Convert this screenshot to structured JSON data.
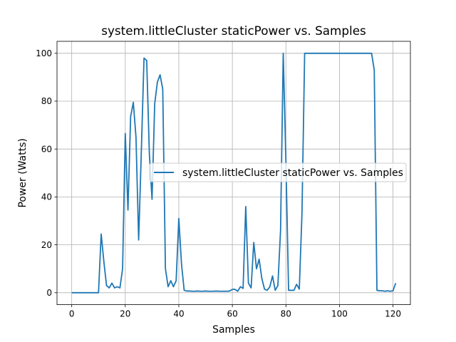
{
  "chart_data": {
    "type": "line",
    "title": "system.littleCluster staticPower vs. Samples",
    "xlabel": "Samples",
    "ylabel": "Power (Watts)",
    "xlim": [
      -5.5,
      126.5
    ],
    "ylim": [
      -5,
      105
    ],
    "xticks": [
      0,
      20,
      40,
      60,
      80,
      100,
      120
    ],
    "yticks": [
      0,
      20,
      40,
      60,
      80,
      100
    ],
    "grid": true,
    "legend_position": "center-right",
    "series": [
      {
        "name": "system.littleCluster staticPower vs. Samples",
        "color": "#1f77b4",
        "x": [
          0,
          1,
          2,
          3,
          4,
          5,
          6,
          7,
          8,
          9,
          10,
          11,
          12,
          13,
          14,
          15,
          16,
          17,
          18,
          19,
          20,
          21,
          22,
          23,
          24,
          25,
          26,
          27,
          28,
          29,
          30,
          31,
          32,
          33,
          34,
          35,
          36,
          37,
          38,
          39,
          40,
          41,
          42,
          43,
          44,
          45,
          46,
          47,
          48,
          49,
          50,
          51,
          52,
          53,
          54,
          55,
          56,
          57,
          58,
          59,
          60,
          61,
          62,
          63,
          64,
          65,
          66,
          67,
          68,
          69,
          70,
          71,
          72,
          73,
          74,
          75,
          76,
          77,
          78,
          79,
          80,
          81,
          82,
          83,
          84,
          85,
          86,
          87,
          88,
          89,
          90,
          91,
          92,
          93,
          94,
          95,
          96,
          97,
          98,
          99,
          100,
          101,
          102,
          103,
          104,
          105,
          106,
          107,
          108,
          109,
          110,
          111,
          112,
          113,
          114,
          115,
          116,
          117,
          118,
          119,
          120,
          121
        ],
        "y": [
          0,
          0,
          0,
          0,
          0,
          0,
          0,
          0,
          0,
          0,
          0,
          24.5,
          13,
          3,
          2,
          4,
          2,
          2.5,
          2,
          10,
          66.5,
          34.5,
          73.5,
          79.5,
          65,
          22,
          59,
          98,
          97,
          58,
          39,
          79,
          88,
          91,
          85,
          10,
          2.5,
          5,
          2.5,
          5,
          31,
          12,
          1,
          0.7,
          0.7,
          0.6,
          0.6,
          0.7,
          0.6,
          0.6,
          0.7,
          0.6,
          0.6,
          0.6,
          0.7,
          0.6,
          0.6,
          0.6,
          0.6,
          0.7,
          1.4,
          1.4,
          0.6,
          2.5,
          1.8,
          36,
          4,
          2,
          21,
          10,
          14,
          6,
          1.5,
          1,
          2.5,
          7,
          1,
          3,
          26,
          100,
          55,
          1,
          1,
          1,
          3.5,
          1.5,
          33,
          100,
          100,
          100,
          100,
          100,
          100,
          100,
          100,
          100,
          100,
          100,
          100,
          100,
          100,
          100,
          100,
          100,
          100,
          100,
          100,
          100,
          100,
          100,
          100,
          100,
          100,
          93,
          1,
          0.8,
          0.8,
          0.6,
          0.8,
          0.6,
          0.8,
          4
        ]
      }
    ]
  }
}
